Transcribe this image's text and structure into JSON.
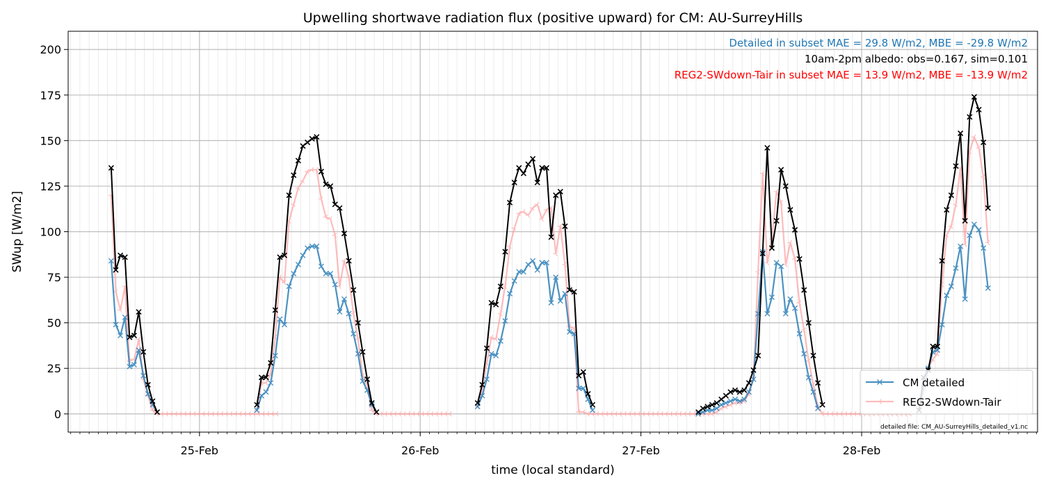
{
  "chart_data": {
    "type": "line",
    "title": "Upwelling shortwave radiation flux (positive upward) for CM: AU-SurreyHills",
    "xlabel": "time (local standard)",
    "ylabel": "SWup [W/m2]",
    "ylim": [
      -10,
      210
    ],
    "xlim": [
      -0.595,
      3.797
    ],
    "yticks": [
      0,
      25,
      50,
      75,
      100,
      125,
      150,
      175,
      200
    ],
    "xticks": [
      {
        "pos": 0,
        "label": "25-Feb"
      },
      {
        "pos": 1,
        "label": "26-Feb"
      },
      {
        "pos": 2,
        "label": "27-Feb"
      },
      {
        "pos": 3,
        "label": "28-Feb"
      }
    ],
    "grid": true,
    "legend_position": "lower-right",
    "annotations": [
      {
        "text": "Detailed in subset MAE = 29.8 W/m2, MBE = -29.8 W/m2",
        "color": "#1f77b4"
      },
      {
        "text": "10am-2pm albedo: obs=0.167, sim=0.101",
        "color": "#000000"
      },
      {
        "text": "REG2-SWdown-Tair in subset MAE = 13.9 W/m2, MBE = -13.9 W/m2",
        "color": "#ff0000"
      }
    ],
    "footnote": "detailed file: CM_AU-SurreyHills_detailed_v1.nc",
    "series": [
      {
        "name": "CM detailed",
        "color": "#1f77b4",
        "marker": "x",
        "segments": [
          {
            "x0": -0.4,
            "values": [
              84,
              49,
              43,
              53,
              26,
              27,
              35,
              21,
              11,
              5,
              1
            ]
          },
          {
            "x0": 0.26,
            "values": [
              2,
              10,
              12,
              17,
              32,
              52,
              49,
              70,
              77,
              82,
              87,
              91,
              92,
              92,
              81,
              77,
              77,
              71,
              56,
              63,
              55,
              44,
              33,
              18,
              13,
              5,
              1
            ]
          },
          {
            "x0": 1.26,
            "values": [
              4,
              10,
              19,
              33,
              32,
              40,
              51,
              66,
              73,
              78,
              78,
              82,
              84,
              79,
              83,
              83,
              61,
              75,
              62,
              66,
              45,
              44,
              14,
              14,
              8,
              2
            ]
          },
          {
            "x0": 2.26,
            "values": [
              0,
              1,
              2,
              2,
              3,
              5,
              6,
              7,
              8,
              7,
              8,
              12,
              19,
              55,
              89,
              55,
              64,
              83,
              81,
              55,
              63,
              58,
              44,
              33,
              20,
              12,
              3
            ]
          },
          {
            "x0": 3.26,
            "values": [
              2,
              14,
              25,
              34,
              35,
              49,
              65,
              70,
              80,
              92,
              63,
              98,
              104,
              101,
              91,
              69
            ]
          }
        ]
      },
      {
        "name": "REG2-SWdown-Tair",
        "color": "#ff9999",
        "marker": "tri_left",
        "segments": [
          {
            "x0": -0.4,
            "values": [
              120,
              67,
              57,
              70,
              29,
              30,
              41,
              19,
              10,
              2,
              0,
              0,
              0,
              0,
              0,
              0,
              0,
              0,
              0,
              0,
              0,
              0,
              0,
              0,
              0,
              0,
              0,
              0,
              0,
              0,
              0,
              0,
              0,
              0,
              0,
              0,
              0
            ]
          },
          {
            "x0": 0.26,
            "values": [
              2,
              17,
              17,
              22,
              42,
              75,
              72,
              106,
              115,
              124,
              128,
              133,
              134,
              134,
              118,
              108,
              107,
              98,
              70,
              84,
              75,
              55,
              41,
              21,
              16,
              2,
              0,
              0,
              0,
              0,
              0,
              0,
              0,
              0,
              0,
              0,
              0,
              0,
              0,
              0,
              0,
              0,
              0
            ]
          },
          {
            "x0": 1.26,
            "values": [
              4,
              13,
              28,
              42,
              41,
              55,
              70,
              92,
              102,
              110,
              111,
              109,
              113,
              115,
              107,
              112,
              113,
              88,
              103,
              82,
              48,
              47,
              1,
              1,
              0,
              0,
              0,
              0,
              0,
              0,
              0,
              0,
              0,
              0,
              0,
              0,
              0,
              0,
              0,
              0,
              0,
              0,
              0,
              0,
              0,
              0,
              0,
              0,
              0
            ]
          },
          {
            "x0": 2.26,
            "values": [
              0,
              0,
              0,
              0,
              1,
              3,
              4,
              5,
              6,
              6,
              7,
              11,
              20,
              78,
              132,
              83,
              96,
              122,
              116,
              82,
              94,
              85,
              61,
              46,
              29,
              16,
              4,
              0,
              0,
              0,
              0,
              0,
              0,
              0,
              0,
              0,
              0,
              0,
              0,
              0,
              0,
              0,
              0,
              0,
              0,
              0,
              0
            ]
          },
          {
            "x0": 3.26,
            "values": [
              4,
              17,
              25,
              30,
              33,
              71,
              98,
              103,
              115,
              135,
              93,
              144,
              152,
              146,
              130,
              94
            ]
          }
        ]
      },
      {
        "name": "",
        "color": "#000000",
        "marker": "x",
        "segments": [
          {
            "x0": -0.4,
            "values": [
              135,
              79,
              87,
              86,
              42,
              43,
              56,
              34,
              16,
              7,
              1
            ]
          },
          {
            "x0": 0.26,
            "values": [
              5,
              20,
              20,
              28,
              57,
              86,
              87,
              120,
              131,
              139,
              147,
              149,
              151,
              152,
              133,
              126,
              125,
              115,
              113,
              99,
              84,
              68,
              50,
              34,
              19,
              6,
              1
            ]
          },
          {
            "x0": 1.26,
            "values": [
              6,
              16,
              36,
              61,
              60,
              70,
              89,
              116,
              127,
              135,
              132,
              137,
              140,
              127,
              135,
              135,
              97,
              120,
              122,
              103,
              68,
              67,
              21,
              23,
              11,
              5
            ]
          },
          {
            "x0": 2.26,
            "values": [
              1,
              3,
              4,
              5,
              6,
              8,
              10,
              12,
              13,
              12,
              13,
              17,
              24,
              32,
              88,
              146,
              91,
              106,
              134,
              125,
              112,
              101,
              85,
              68,
              50,
              32,
              17,
              5
            ]
          },
          {
            "x0": 3.26,
            "values": [
              2,
              20,
              24,
              37,
              37,
              84,
              112,
              120,
              136,
              154,
              106,
              163,
              174,
              167,
              149,
              113
            ]
          }
        ]
      }
    ]
  }
}
